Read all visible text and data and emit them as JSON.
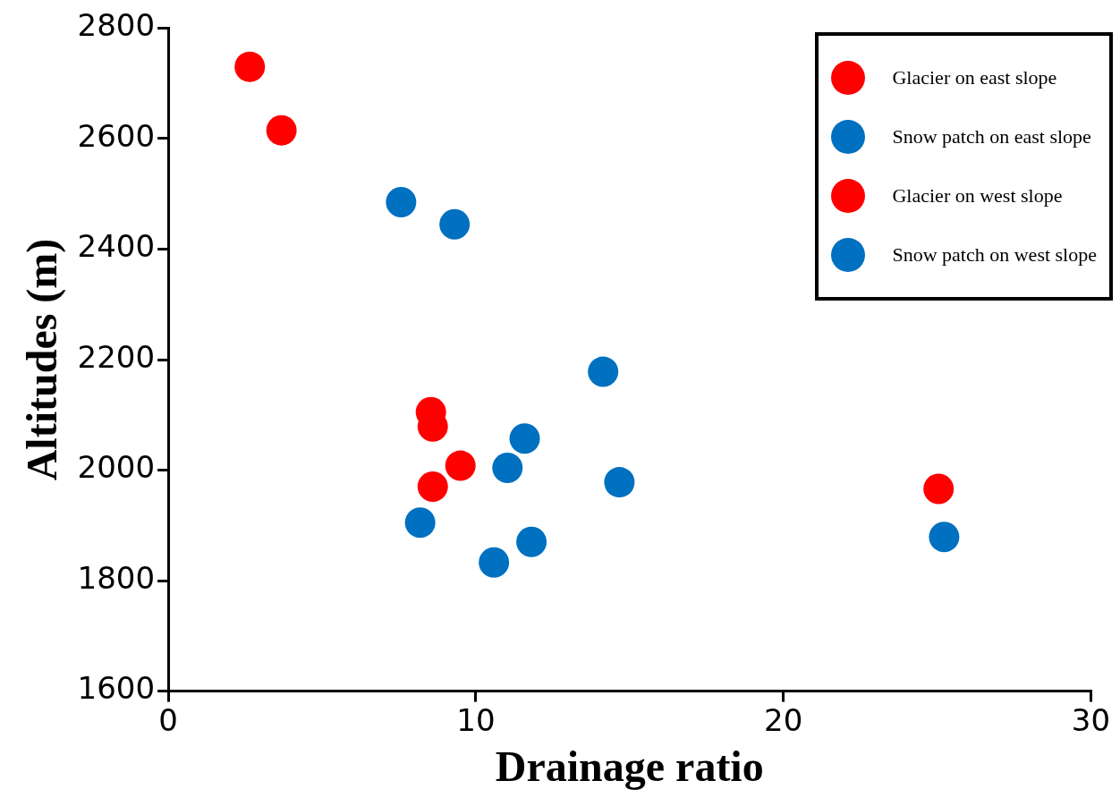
{
  "chart_data": {
    "type": "scatter",
    "xlabel": "Drainage ratio",
    "ylabel": "Altitudes (m)",
    "xlim": [
      0,
      30
    ],
    "xticks": [
      0,
      10,
      20,
      30
    ],
    "ylim": [
      1600,
      2800
    ],
    "yticks": [
      1600,
      1800,
      2000,
      2200,
      2400,
      2600,
      2800
    ],
    "grid": false,
    "legend": "top right",
    "marker": "circle",
    "series": [
      {
        "name": "Glacier on east slope",
        "color": "#ff0000",
        "x": [
          2.65,
          3.68,
          8.54,
          8.6,
          9.5,
          8.6
        ],
        "values": [
          2730,
          2615,
          2105,
          2079,
          2008,
          1970
        ]
      },
      {
        "name": "Snow patch on east slope",
        "color": "#0070c0",
        "x": [
          7.57,
          9.31,
          14.14,
          11.59,
          11.03,
          14.67,
          8.19,
          11.81,
          10.59
        ],
        "values": [
          2485,
          2445,
          2178,
          2057,
          2004,
          1978,
          1905,
          1870,
          1833
        ]
      },
      {
        "name": "Glacier on west slope",
        "color": "#ff0000",
        "x": [
          25.05
        ],
        "values": [
          1966
        ]
      },
      {
        "name": "Snow patch on west slope",
        "color": "#0070c0",
        "x": [
          25.23
        ],
        "values": [
          1879
        ]
      }
    ]
  }
}
